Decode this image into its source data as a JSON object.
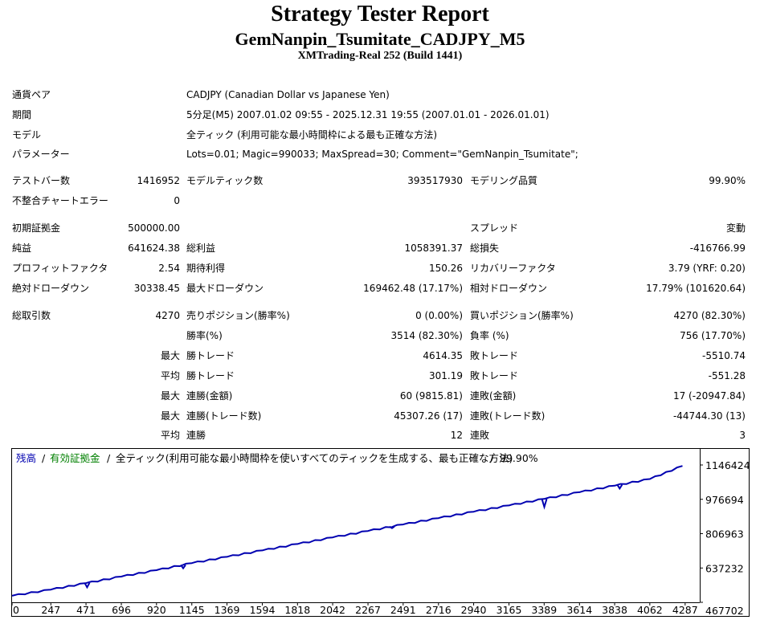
{
  "report": {
    "title": "Strategy Tester Report",
    "subtitle": "GemNanpin_Tsumitate_CADJPY_M5",
    "server": "XMTrading-Real 252 (Build 1441)"
  },
  "info": {
    "symbol": {
      "label": "通貨ペア",
      "value": "CADJPY (Canadian Dollar vs Japanese Yen)"
    },
    "period": {
      "label": "期間",
      "value": "5分足(M5) 2007.01.02 09:55 - 2025.12.31 19:55 (2007.01.01 - 2026.01.01)"
    },
    "model": {
      "label": "モデル",
      "value": "全ティック (利用可能な最小時間枠による最も正確な方法)"
    },
    "params": {
      "label": "パラメーター",
      "value": "Lots=0.01; Magic=990033; MaxSpread=30; Comment=\"GemNanpin_Tsumitate\";"
    }
  },
  "stats": {
    "bars": {
      "label": "テストバー数",
      "value": "1416952"
    },
    "ticks": {
      "label": "モデルティック数",
      "value": "393517930"
    },
    "quality": {
      "label": "モデリング品質",
      "value": "99.90%"
    },
    "mismatch": {
      "label": "不整合チャートエラー",
      "value": "0"
    },
    "deposit": {
      "label": "初期証拠金",
      "value": "500000.00"
    },
    "spread": {
      "label": "スプレッド",
      "value": "変動"
    },
    "net_profit": {
      "label": "純益",
      "value": "641624.38"
    },
    "gross_profit": {
      "label": "総利益",
      "value": "1058391.37"
    },
    "gross_loss": {
      "label": "総損失",
      "value": "-416766.99"
    },
    "profit_factor": {
      "label": "プロフィットファクタ",
      "value": "2.54"
    },
    "expected_payoff": {
      "label": "期待利得",
      "value": "150.26"
    },
    "recovery_factor": {
      "label": "リカバリーファクタ",
      "value": "3.79 (YRF: 0.20)"
    },
    "abs_dd": {
      "label": "絶対ドローダウン",
      "value": "30338.45"
    },
    "max_dd": {
      "label": "最大ドローダウン",
      "value": "169462.48 (17.17%)"
    },
    "rel_dd": {
      "label": "相対ドローダウン",
      "value": "17.79% (101620.64)"
    },
    "total_trades": {
      "label": "総取引数",
      "value": "4270"
    },
    "short_pos": {
      "label": "売りポジション(勝率%)",
      "value": "0 (0.00%)"
    },
    "long_pos": {
      "label": "買いポジション(勝率%)",
      "value": "4270 (82.30%)"
    },
    "win_rate": {
      "label": "勝率(%)",
      "value": "3514 (82.30%)"
    },
    "loss_rate": {
      "label": "負率 (%)",
      "value": "756 (17.70%)"
    },
    "max_win": {
      "prefix": "最大",
      "label": "勝トレード",
      "value": "4614.35"
    },
    "max_loss": {
      "label": "敗トレード",
      "value": "-5510.74"
    },
    "avg_win": {
      "prefix": "平均",
      "label": "勝トレード",
      "value": "301.19"
    },
    "avg_loss": {
      "label": "敗トレード",
      "value": "-551.28"
    },
    "max_consec_win_amt": {
      "prefix": "最大",
      "label": "連勝(金額)",
      "value": "60 (9815.81)"
    },
    "max_consec_loss_amt": {
      "label": "連敗(金額)",
      "value": "17 (-20947.84)"
    },
    "max_consec_win_cnt": {
      "prefix": "最大",
      "label": "連勝(トレード数)",
      "value": "45307.26 (17)"
    },
    "max_consec_loss_cnt": {
      "label": "連敗(トレード数)",
      "value": "-44744.30 (13)"
    },
    "avg_consec_win": {
      "prefix": "平均",
      "label": "連勝",
      "value": "12"
    },
    "avg_consec_loss": {
      "label": "連敗",
      "value": "3"
    }
  },
  "chart_data": {
    "type": "line",
    "legend": {
      "balance": "残高",
      "sep1": "/",
      "equity": "有効証拠金",
      "sep2": "/",
      "rest": "全ティック(利用可能な最小時間枠を使いすべてのティックを生成する、最も正確な方法)",
      "sep3": "/",
      "quality": "99.90%"
    },
    "colors": {
      "balance": "#0000b0",
      "equity": "#008000",
      "border": "#000000"
    },
    "x_ticks": [
      "0",
      "247",
      "471",
      "696",
      "920",
      "1145",
      "1369",
      "1594",
      "1818",
      "2042",
      "2267",
      "2491",
      "2716",
      "2940",
      "3165",
      "3389",
      "3614",
      "3838",
      "4062",
      "4287"
    ],
    "y_ticks": [
      "1146424",
      "976694",
      "806963",
      "637232",
      "467702"
    ],
    "xlim": [
      0,
      4380
    ],
    "ylim": [
      467702,
      1146424
    ],
    "series": [
      {
        "name": "残高",
        "x": [
          0,
          247,
          471,
          696,
          920,
          1145,
          1369,
          1594,
          1818,
          2042,
          2267,
          2491,
          2716,
          2940,
          3165,
          3389,
          3614,
          3838,
          4062,
          4270
        ],
        "y": [
          500000,
          530500,
          562400,
          594900,
          626300,
          661200,
          692500,
          724000,
          755900,
          788300,
          820300,
          852400,
          883800,
          915400,
          946300,
          978700,
          1012000,
          1044100,
          1077000,
          1141624
        ]
      }
    ],
    "dips": [
      {
        "x": 478,
        "y": 542000
      },
      {
        "x": 1090,
        "y": 636000
      },
      {
        "x": 2420,
        "y": 834000
      },
      {
        "x": 3390,
        "y": 939000
      },
      {
        "x": 3870,
        "y": 1030000
      }
    ]
  }
}
